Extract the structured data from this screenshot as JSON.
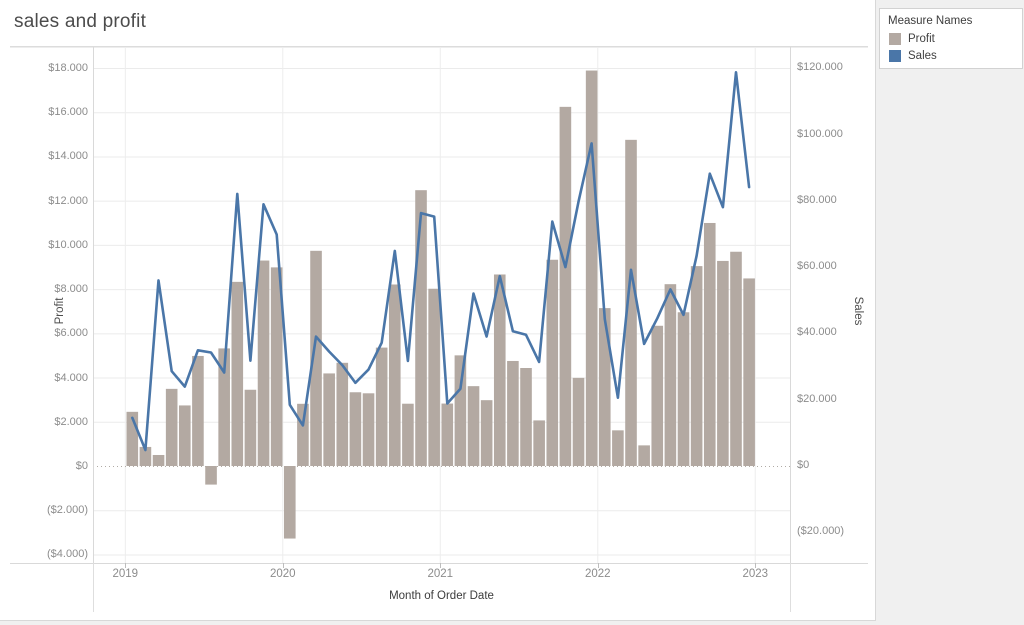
{
  "title": "sales and profit",
  "legend": {
    "title": "Measure Names",
    "items": [
      {
        "label": "Profit",
        "color": "#b3a9a2"
      },
      {
        "label": "Sales",
        "color": "#4a76a8"
      }
    ]
  },
  "chart_data": {
    "type": "dual-axis bar+line",
    "title": "sales and profit",
    "xlabel": "Month of Order Date",
    "x_axis": {
      "years": [
        "2019",
        "2020",
        "2021",
        "2022",
        "2023"
      ],
      "granularity": "month"
    },
    "months": [
      "2019-01",
      "2019-02",
      "2019-03",
      "2019-04",
      "2019-05",
      "2019-06",
      "2019-07",
      "2019-08",
      "2019-09",
      "2019-10",
      "2019-11",
      "2019-12",
      "2020-01",
      "2020-02",
      "2020-03",
      "2020-04",
      "2020-05",
      "2020-06",
      "2020-07",
      "2020-08",
      "2020-09",
      "2020-10",
      "2020-11",
      "2020-12",
      "2021-01",
      "2021-02",
      "2021-03",
      "2021-04",
      "2021-05",
      "2021-06",
      "2021-07",
      "2021-08",
      "2021-09",
      "2021-10",
      "2021-11",
      "2021-12",
      "2022-01",
      "2022-02",
      "2022-03",
      "2022-04",
      "2022-05",
      "2022-06",
      "2022-07",
      "2022-08",
      "2022-09",
      "2022-10",
      "2022-11",
      "2022-12"
    ],
    "series": [
      {
        "name": "Profit",
        "type": "bar",
        "axis": "left",
        "color": "#b3a9a2",
        "values": [
          2450,
          862,
          498,
          3489,
          2739,
          4977,
          -841,
          5318,
          8328,
          3448,
          9292,
          8983,
          -3281,
          2813,
          9732,
          4187,
          4667,
          3335,
          3288,
          5355,
          8209,
          2817,
          12474,
          8016,
          2824,
          5004,
          3611,
          2977,
          8662,
          4750,
          4432,
          2062,
          9328,
          16243,
          3986,
          17885,
          7141,
          1613,
          14751,
          933,
          6342,
          8223,
          6953,
          9040,
          10991,
          9275,
          9690,
          8483
        ]
      },
      {
        "name": "Sales",
        "type": "line",
        "axis": "right",
        "color": "#4a76a8",
        "values": [
          14237,
          4520,
          55691,
          28295,
          23648,
          34595,
          33946,
          27909,
          81777,
          31453,
          78629,
          69546,
          18174,
          11951,
          38726,
          34195,
          30131,
          24797,
          28765,
          36898,
          64595,
          31404,
          75973,
          74920,
          18542,
          22979,
          51716,
          38750,
          56988,
          40344,
          39262,
          31115,
          73410,
          59687,
          79412,
          96999,
          43971,
          20301,
          58872,
          36522,
          44261,
          52982,
          45264,
          63121,
          87867,
          77777,
          118448,
          83829
        ]
      }
    ],
    "left_axis": {
      "title": "Profit",
      "range": [
        -4600,
        18900
      ],
      "ticks": [
        {
          "v": 18000,
          "label": "$18.000"
        },
        {
          "v": 16000,
          "label": "$16.000"
        },
        {
          "v": 14000,
          "label": "$14.000"
        },
        {
          "v": 12000,
          "label": "$12.000"
        },
        {
          "v": 10000,
          "label": "$10.000"
        },
        {
          "v": 8000,
          "label": "$8.000"
        },
        {
          "v": 6000,
          "label": "$6.000"
        },
        {
          "v": 4000,
          "label": "$4.000"
        },
        {
          "v": 2000,
          "label": "$2.000"
        },
        {
          "v": 0,
          "label": "$0"
        },
        {
          "v": -2000,
          "label": "($2.000)"
        },
        {
          "v": -4000,
          "label": "($4.000)"
        }
      ],
      "grid": true,
      "zero_line": "dotted"
    },
    "right_axis": {
      "title": "Sales",
      "range": [
        -29500,
        126000
      ],
      "ticks": [
        {
          "v": 120000,
          "label": "$120.000"
        },
        {
          "v": 100000,
          "label": "$100.000"
        },
        {
          "v": 80000,
          "label": "$80.000"
        },
        {
          "v": 60000,
          "label": "$60.000"
        },
        {
          "v": 40000,
          "label": "$40.000"
        },
        {
          "v": 20000,
          "label": "$20.000"
        },
        {
          "v": 0,
          "label": "$0"
        },
        {
          "v": -20000,
          "label": "($20.000)"
        }
      ]
    },
    "legend_position": "top-right"
  }
}
